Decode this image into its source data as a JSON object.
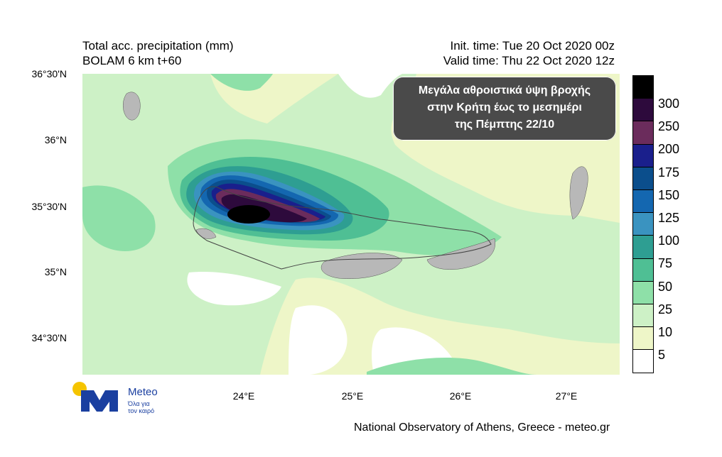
{
  "header": {
    "title_line1": "Total acc. precipitation (mm)",
    "title_line2": "BOLAM 6 km t+60",
    "init_time": "Init. time: Tue 20 Oct 2020 00z",
    "valid_time": "Valid time: Thu 22 Oct 2020 12z"
  },
  "annotation": {
    "line1": "Μεγάλα αθροιστικά ύψη βροχής",
    "line2": "στην Κρήτη έως το μεσημέρι",
    "line3": "της Πέμπτης 22/10"
  },
  "axes": {
    "lat_labels": [
      "36°30'N",
      "36°N",
      "35°30'N",
      "35°N",
      "34°30'N"
    ],
    "lon_labels": [
      "24°E",
      "25°E",
      "26°E",
      "27°E"
    ]
  },
  "colorbar": {
    "labels": [
      "300",
      "250",
      "200",
      "175",
      "150",
      "125",
      "100",
      "75",
      "50",
      "25",
      "10",
      "5"
    ],
    "colors": [
      "#000000",
      "#2d0a3c",
      "#6b2c5c",
      "#1a1f8c",
      "#0b4e8c",
      "#1467b0",
      "#3a93c0",
      "#2e9e92",
      "#4fbf94",
      "#8ee0a8",
      "#cdf1c6",
      "#eef6c8",
      "#ffffff"
    ]
  },
  "logo": {
    "brand": "Meteo",
    "slogan_line1": "Όλα για",
    "slogan_line2": "τον καιρό"
  },
  "footer": "National Observatory of Athens, Greece - meteo.gr"
}
